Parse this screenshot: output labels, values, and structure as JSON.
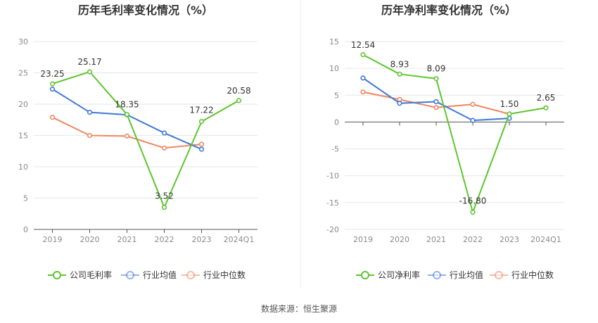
{
  "source": "数据来源：恒生聚源",
  "colors": {
    "company": "#5ec52e",
    "avg": "#3f78d8",
    "median": "#ef875f"
  },
  "chart_data": [
    {
      "type": "line",
      "title": "历年毛利率变化情况（%）",
      "categories": [
        "2019",
        "2020",
        "2021",
        "2022",
        "2023",
        "2024Q1"
      ],
      "ylim": [
        0,
        30
      ],
      "yticks": [
        0,
        5,
        10,
        15,
        20,
        25,
        30
      ],
      "grid": true,
      "legend": "bottom",
      "series": [
        {
          "name": "公司毛利率",
          "key": "company",
          "values": [
            23.25,
            25.17,
            18.35,
            3.52,
            17.22,
            20.58
          ],
          "labels": [
            "23.25",
            "25.17",
            "18.35",
            "3.52",
            "17.22",
            "20.58"
          ]
        },
        {
          "name": "行业均值",
          "key": "avg",
          "values": [
            22.4,
            18.7,
            18.3,
            15.4,
            12.8,
            null
          ]
        },
        {
          "name": "行业中位数",
          "key": "median",
          "values": [
            17.9,
            15.0,
            14.9,
            13.0,
            13.6,
            null
          ]
        }
      ]
    },
    {
      "type": "line",
      "title": "历年净利率变化情况（%）",
      "categories": [
        "2019",
        "2020",
        "2021",
        "2022",
        "2023",
        "2024Q1"
      ],
      "ylim": [
        -20,
        15
      ],
      "yticks": [
        -20,
        -15,
        -10,
        -5,
        0,
        5,
        10,
        15
      ],
      "grid": true,
      "legend": "bottom",
      "series": [
        {
          "name": "公司净利率",
          "key": "company",
          "values": [
            12.54,
            8.93,
            8.09,
            -16.8,
            1.5,
            2.65
          ],
          "labels": [
            "12.54",
            "8.93",
            "8.09",
            "-16.80",
            "1.50",
            "2.65"
          ]
        },
        {
          "name": "行业均值",
          "key": "avg",
          "values": [
            8.2,
            3.5,
            3.8,
            0.3,
            0.7,
            null
          ]
        },
        {
          "name": "行业中位数",
          "key": "median",
          "values": [
            5.6,
            4.2,
            2.7,
            3.3,
            1.5,
            null
          ]
        }
      ]
    }
  ]
}
